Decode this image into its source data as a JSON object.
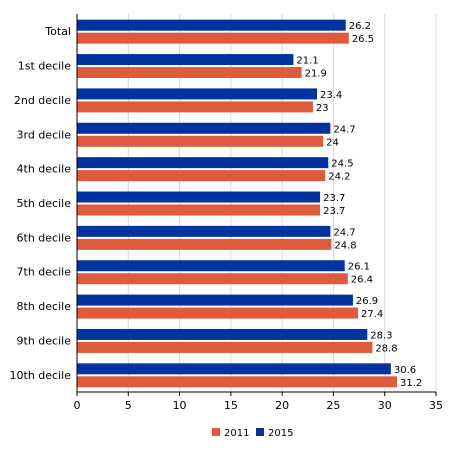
{
  "chart_data": {
    "type": "bar",
    "orientation": "horizontal",
    "categories": [
      "Total",
      "1st decile",
      "2nd decile",
      "3rd decile",
      "4th decile",
      "5th decile",
      "6th decile",
      "7th decile",
      "8th decile",
      "9th decile",
      "10th decile"
    ],
    "series": [
      {
        "name": "2015",
        "color": "#0033a0",
        "values": [
          26.2,
          21.1,
          23.4,
          24.7,
          24.5,
          23.7,
          24.7,
          26.1,
          26.9,
          28.3,
          30.6
        ]
      },
      {
        "name": "2011",
        "color": "#e05a3c",
        "values": [
          26.5,
          21.9,
          23,
          24,
          24.2,
          23.7,
          24.8,
          26.4,
          27.4,
          28.8,
          31.2
        ]
      }
    ],
    "legend_order": [
      "2011",
      "2015"
    ],
    "xlim": [
      0,
      35
    ],
    "xticks": [
      0,
      5,
      10,
      15,
      20,
      25,
      30,
      35
    ],
    "xlabel": "",
    "ylabel": "",
    "title": "",
    "grid": true,
    "legend_position": "bottom"
  }
}
